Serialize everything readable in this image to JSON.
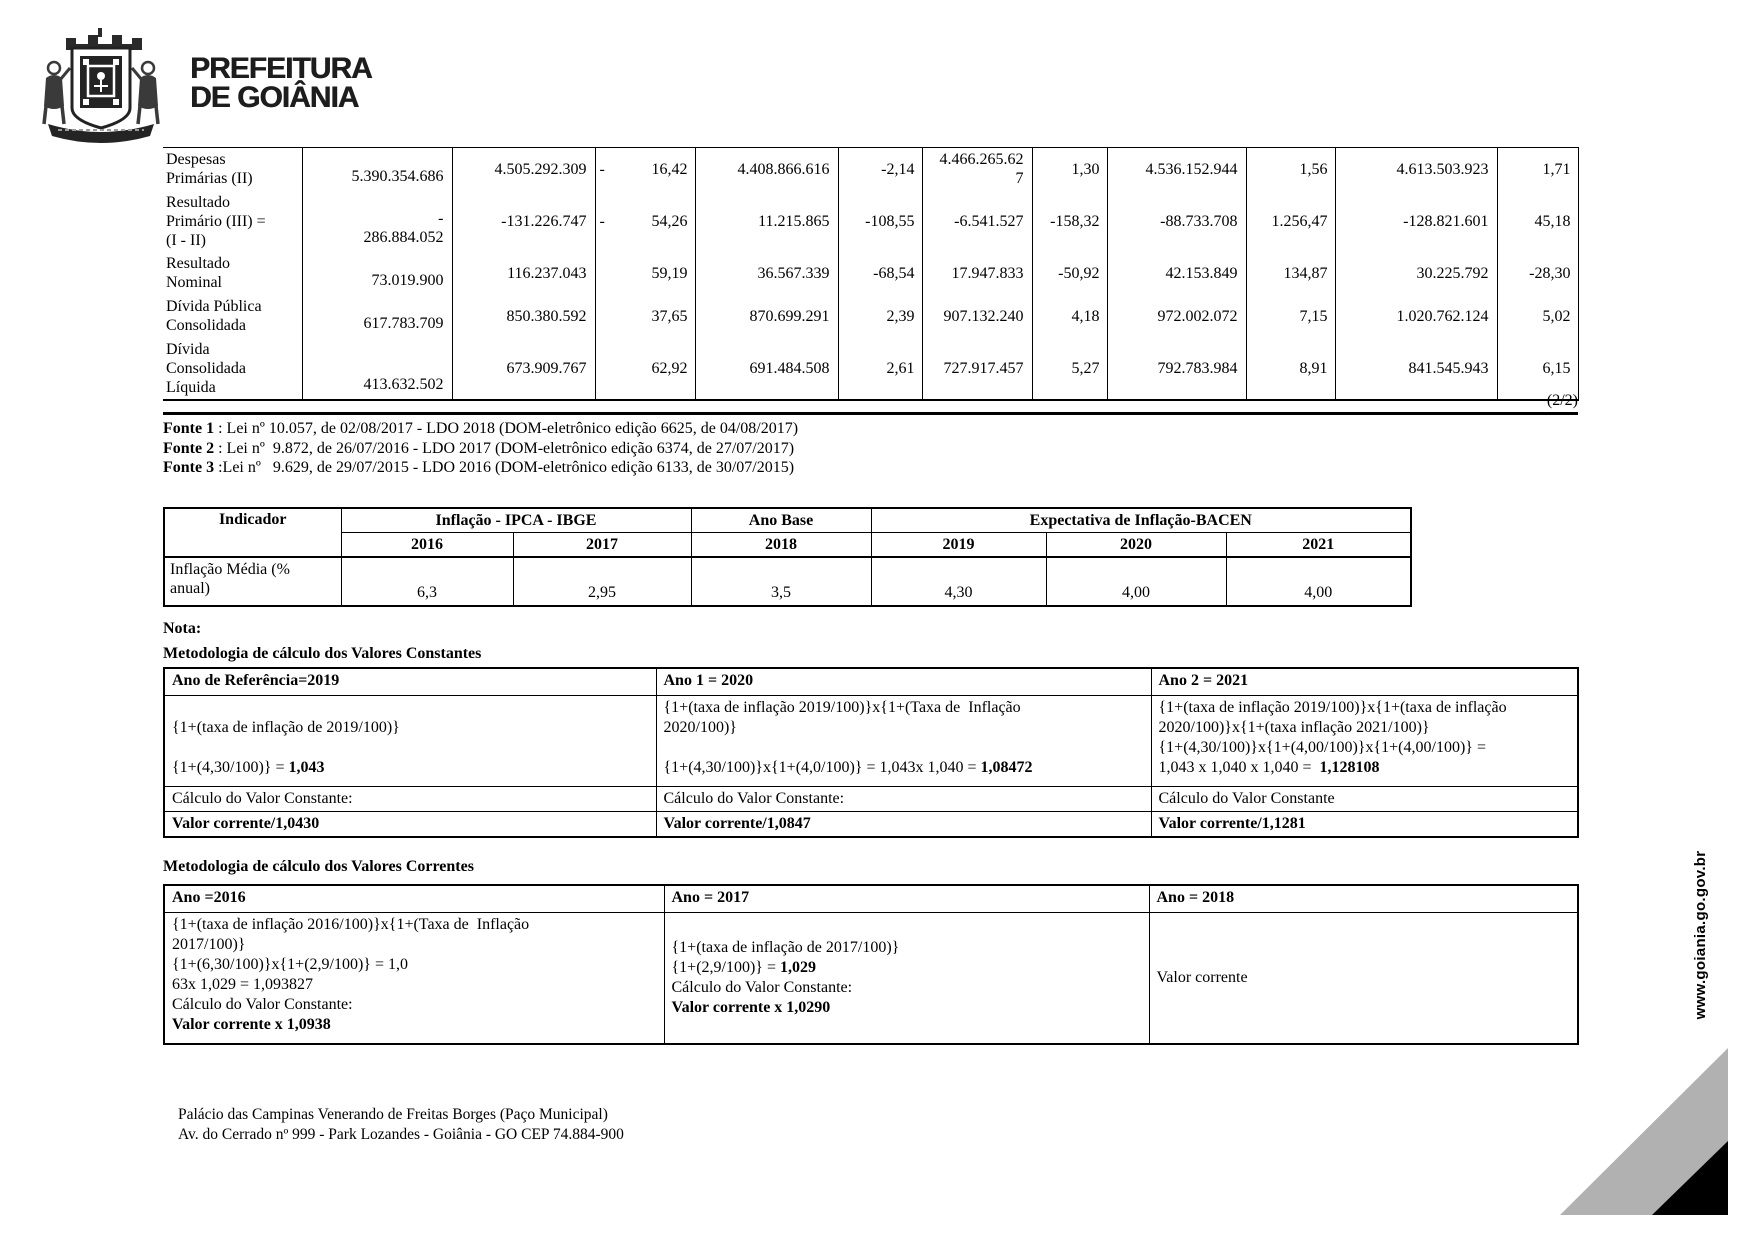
{
  "logo": {
    "line1": "PREFEITURA",
    "line2": "DE GOIÂNIA"
  },
  "page_number": "(2/2)",
  "fiscal_table": {
    "rows": [
      {
        "label": "Despesas\nPrimárias (II)",
        "values": [
          "5.390.354.686",
          "4.505.292.309",
          "- 16,42",
          "4.408.866.616",
          "-2,14",
          "4.466.265.62\n7",
          "1,30",
          "4.536.152.944",
          "1,56",
          "4.613.503.923",
          "1,71"
        ]
      },
      {
        "label": "Resultado\nPrimário (III) =\n(I - II)",
        "values": [
          "-\n286.884.052",
          "-131.226.747",
          "- 54,26",
          "11.215.865",
          "-108,55",
          "-6.541.527",
          "-158,32",
          "-88.733.708",
          "1.256,47",
          "-128.821.601",
          "45,18"
        ]
      },
      {
        "label": "Resultado\nNominal",
        "values": [
          "73.019.900",
          "116.237.043",
          "59,19",
          "36.567.339",
          "-68,54",
          "17.947.833",
          "-50,92",
          "42.153.849",
          "134,87",
          "30.225.792",
          "-28,30"
        ]
      },
      {
        "label": "Dívida Pública\nConsolidada",
        "values": [
          "617.783.709",
          "850.380.592",
          "37,65",
          "870.699.291",
          "2,39",
          "907.132.240",
          "4,18",
          "972.002.072",
          "7,15",
          "1.020.762.124",
          "5,02"
        ]
      },
      {
        "label": "Dívida\nConsolidada\nLíquida",
        "values": [
          "413.632.502",
          "673.909.767",
          "62,92",
          "691.484.508",
          "2,61",
          "727.917.457",
          "5,27",
          "792.783.984",
          "8,91",
          "841.545.943",
          "6,15"
        ]
      }
    ]
  },
  "fontes": [
    {
      "label": "Fonte 1",
      "text": " : Lei nº 10.057, de 02/08/2017 - LDO 2018 (DOM-eletrônico edição 6625, de 04/08/2017)"
    },
    {
      "label": "Fonte 2",
      "text": " : Lei nº  9.872, de 26/07/2016 - LDO 2017 (DOM-eletrônico edição 6374, de 27/07/2017)"
    },
    {
      "label": "Fonte 3",
      "text": " :Lei nº   9.629, de 29/07/2015 - LDO 2016 (DOM-eletrônico edição 6133, de 30/07/2015)"
    }
  ],
  "inflation_table": {
    "col_indicador": "Indicador",
    "group_ipca": "Inflação - IPCA - IBGE",
    "group_ano_base": "Ano Base",
    "group_bacen": "Expectativa de Inflação-BACEN",
    "years": [
      "2016",
      "2017",
      "2018",
      "2019",
      "2020",
      "2021"
    ],
    "row_label": "Inflação Média (%\nanual)",
    "values": [
      "6,3",
      "2,95",
      "3,5",
      "4,30",
      "4,00",
      "4,00"
    ]
  },
  "nota": "Nota:",
  "metodologia_constantes": {
    "title": "Metodologia de cálculo dos Valores Constantes",
    "columns": [
      {
        "header": "Ano de Referência=2019",
        "body": "\n{1+(taxa de inflação de 2019/100)}\n\n{1+(4,30/100)} = **1,043**",
        "calc": "Cálculo do Valor Constante:",
        "result": "Valor corrente/1,0430"
      },
      {
        "header": "Ano 1 = 2020",
        "body": "{1+(taxa de inflação 2019/100)}x{1+(Taxa de  Inflação\n2020/100)}\n\n{1+(4,30/100)}x{1+(4,0/100)} = 1,043x 1,040 = **1,08472**",
        "calc": "Cálculo do Valor Constante:",
        "result": "Valor corrente/1,0847"
      },
      {
        "header": "Ano 2 = 2021",
        "body": "{1+(taxa de inflação 2019/100)}x{1+(taxa de inflação\n2020/100)}x{1+(taxa inflação 2021/100)}\n{1+(4,30/100)}x{1+(4,00/100)}x{1+(4,00/100)} =\n1,043 x 1,040 x 1,040 =  **1,128108**",
        "calc": "Cálculo do Valor Constante",
        "result": "Valor corrente/1,1281"
      }
    ]
  },
  "metodologia_correntes": {
    "title": "Metodologia de cálculo dos Valores Correntes",
    "columns": [
      {
        "header": "Ano =2016",
        "body": "{1+(taxa de inflação 2016/100)}x{1+(Taxa de  Inflação\n2017/100)}\n{1+(6,30/100)}x{1+(2,9/100)} = 1,0\n63x 1,029 = 1,093827\nCálculo do Valor Constante:\n**Valor corrente x 1,0938**"
      },
      {
        "header": "Ano = 2017",
        "body": "{1+(taxa de inflação de 2017/100)}\n{1+(2,9/100)} = **1,029**\nCálculo do Valor Constante:\n**Valor corrente x 1,0290**"
      },
      {
        "header": "Ano = 2018",
        "body": "Valor corrente"
      }
    ]
  },
  "footer": {
    "line1": "Palácio das Campinas Venerando de Freitas Borges (Paço Municipal)",
    "line2": "Av. do Cerrado nº 999 - Park Lozandes - Goiânia - GO CEP 74.884-900"
  },
  "website": "www.goiania.go.gov.br"
}
